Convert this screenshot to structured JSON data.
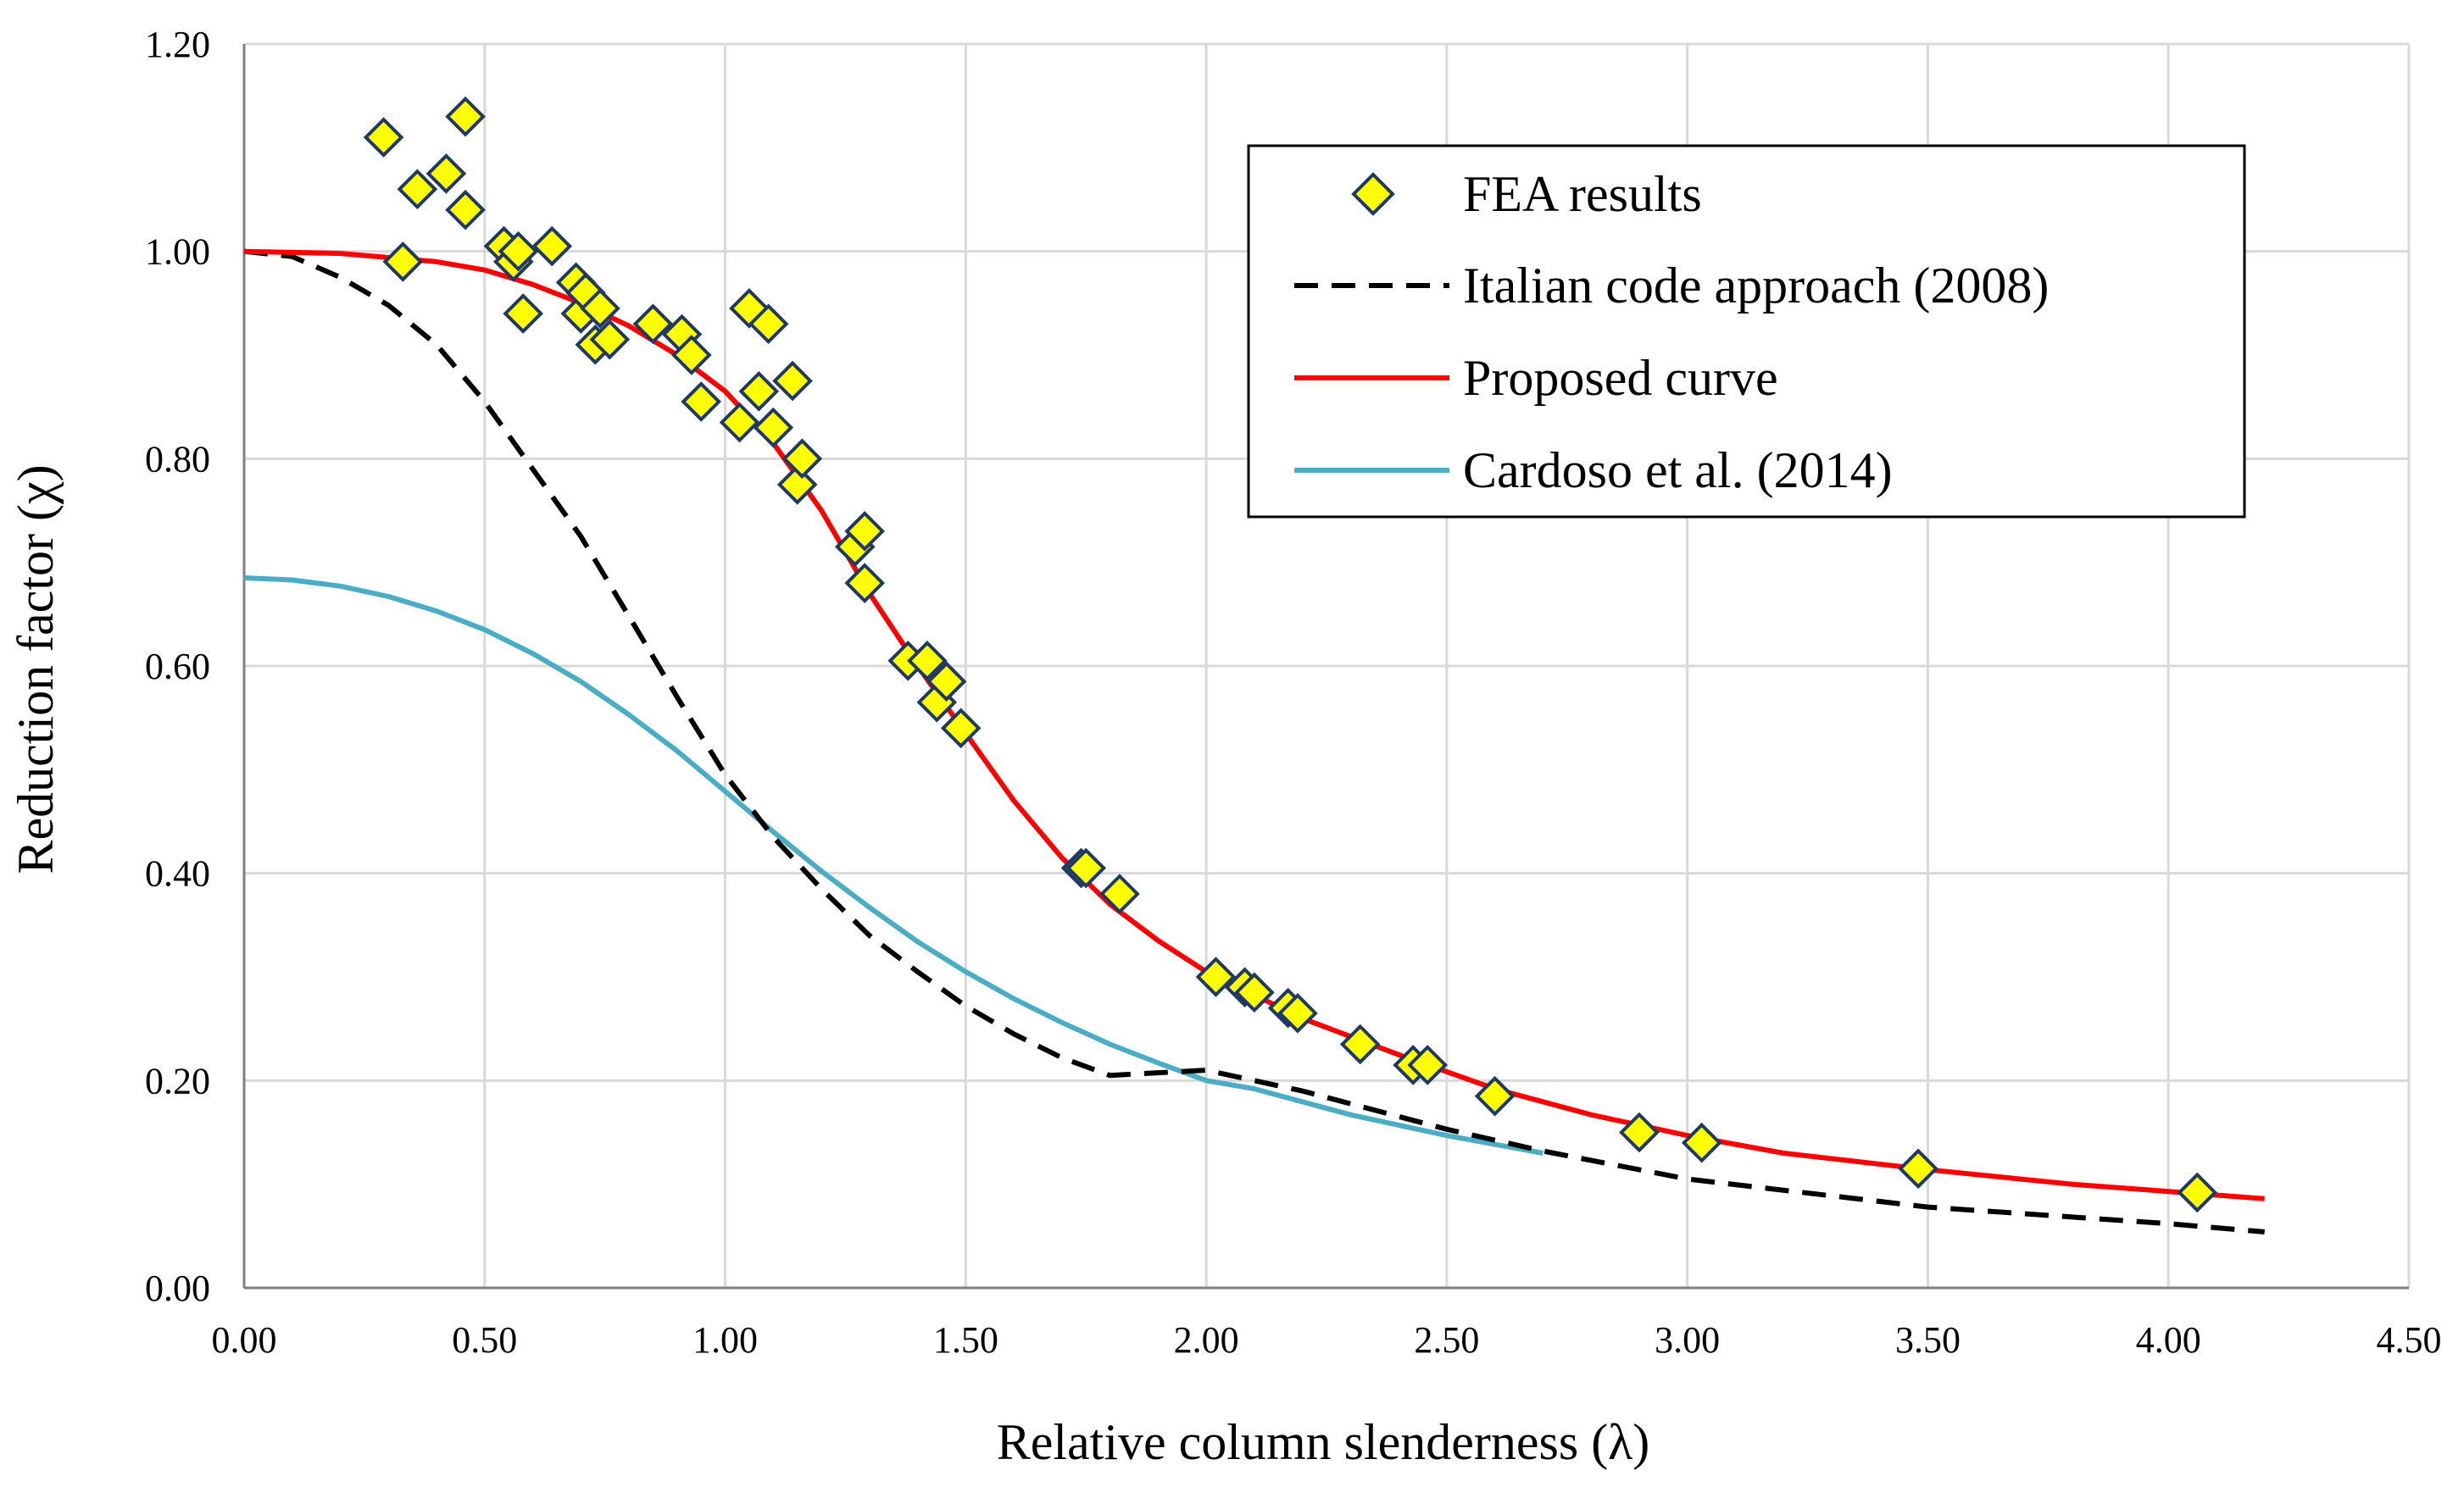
{
  "chart_data": {
    "type": "scatter",
    "xlabel": "Relative column slenderness (λ)",
    "ylabel": "Reduction factor (χ)",
    "xlim": [
      0,
      4.5
    ],
    "ylim": [
      0,
      1.2
    ],
    "x_ticks": [
      "0.00",
      "0.50",
      "1.00",
      "1.50",
      "2.00",
      "2.50",
      "3.00",
      "3.50",
      "4.00",
      "4.50"
    ],
    "y_ticks": [
      "0.00",
      "0.20",
      "0.40",
      "0.60",
      "0.80",
      "1.00",
      "1.20"
    ],
    "grid": true,
    "legend_placement": "top-right",
    "series": [
      {
        "name": "FEA results",
        "kind": "scatter",
        "marker": "diamond",
        "color": "#FFFF00",
        "edge_color": "#1F3864",
        "points": [
          [
            0.29,
            1.11
          ],
          [
            0.33,
            0.99
          ],
          [
            0.36,
            1.06
          ],
          [
            0.42,
            1.075
          ],
          [
            0.46,
            1.13
          ],
          [
            0.46,
            1.04
          ],
          [
            0.54,
            1.005
          ],
          [
            0.56,
            0.99
          ],
          [
            0.57,
            1.0
          ],
          [
            0.58,
            0.94
          ],
          [
            0.64,
            1.005
          ],
          [
            0.69,
            0.97
          ],
          [
            0.7,
            0.94
          ],
          [
            0.71,
            0.96
          ],
          [
            0.73,
            0.91
          ],
          [
            0.74,
            0.945
          ],
          [
            0.76,
            0.915
          ],
          [
            0.85,
            0.93
          ],
          [
            0.91,
            0.92
          ],
          [
            0.93,
            0.9
          ],
          [
            0.95,
            0.855
          ],
          [
            1.03,
            0.835
          ],
          [
            1.05,
            0.945
          ],
          [
            1.07,
            0.865
          ],
          [
            1.09,
            0.93
          ],
          [
            1.1,
            0.83
          ],
          [
            1.14,
            0.875
          ],
          [
            1.15,
            0.775
          ],
          [
            1.16,
            0.8
          ],
          [
            1.27,
            0.715
          ],
          [
            1.29,
            0.73
          ],
          [
            1.29,
            0.68
          ],
          [
            1.38,
            0.605
          ],
          [
            1.42,
            0.605
          ],
          [
            1.44,
            0.565
          ],
          [
            1.46,
            0.585
          ],
          [
            1.49,
            0.54
          ],
          [
            1.74,
            0.405
          ],
          [
            1.75,
            0.405
          ],
          [
            1.82,
            0.38
          ],
          [
            2.02,
            0.3
          ],
          [
            2.08,
            0.29
          ],
          [
            2.1,
            0.285
          ],
          [
            2.17,
            0.27
          ],
          [
            2.19,
            0.265
          ],
          [
            2.32,
            0.235
          ],
          [
            2.43,
            0.215
          ],
          [
            2.46,
            0.215
          ],
          [
            2.6,
            0.185
          ],
          [
            2.9,
            0.15
          ],
          [
            3.03,
            0.14
          ],
          [
            3.48,
            0.115
          ],
          [
            4.06,
            0.092
          ]
        ]
      },
      {
        "name": "Italian code approach (2008)",
        "kind": "line",
        "style": "dashed",
        "color": "#000000",
        "points": [
          [
            0.0,
            1.0
          ],
          [
            0.1,
            0.995
          ],
          [
            0.2,
            0.975
          ],
          [
            0.3,
            0.948
          ],
          [
            0.4,
            0.91
          ],
          [
            0.5,
            0.855
          ],
          [
            0.6,
            0.79
          ],
          [
            0.7,
            0.725
          ],
          [
            0.8,
            0.648
          ],
          [
            0.9,
            0.57
          ],
          [
            1.0,
            0.495
          ],
          [
            1.1,
            0.435
          ],
          [
            1.2,
            0.385
          ],
          [
            1.3,
            0.34
          ],
          [
            1.4,
            0.305
          ],
          [
            1.5,
            0.272
          ],
          [
            1.6,
            0.245
          ],
          [
            1.7,
            0.222
          ],
          [
            1.8,
            0.205
          ],
          [
            2.0,
            0.21
          ],
          [
            2.2,
            0.19
          ],
          [
            2.5,
            0.153
          ],
          [
            2.7,
            0.132
          ],
          [
            3.0,
            0.105
          ],
          [
            3.5,
            0.078
          ],
          [
            4.0,
            0.062
          ],
          [
            4.2,
            0.054
          ]
        ]
      },
      {
        "name": "Proposed curve",
        "kind": "line",
        "style": "solid",
        "color": "#FF0000",
        "points": [
          [
            0.0,
            1.0
          ],
          [
            0.2,
            0.998
          ],
          [
            0.4,
            0.99
          ],
          [
            0.5,
            0.982
          ],
          [
            0.6,
            0.968
          ],
          [
            0.7,
            0.95
          ],
          [
            0.8,
            0.928
          ],
          [
            0.9,
            0.9
          ],
          [
            1.0,
            0.865
          ],
          [
            1.1,
            0.815
          ],
          [
            1.2,
            0.75
          ],
          [
            1.3,
            0.67
          ],
          [
            1.4,
            0.6
          ],
          [
            1.5,
            0.535
          ],
          [
            1.6,
            0.47
          ],
          [
            1.7,
            0.415
          ],
          [
            1.8,
            0.37
          ],
          [
            1.9,
            0.335
          ],
          [
            2.0,
            0.305
          ],
          [
            2.2,
            0.26
          ],
          [
            2.4,
            0.225
          ],
          [
            2.6,
            0.192
          ],
          [
            2.8,
            0.167
          ],
          [
            3.0,
            0.147
          ],
          [
            3.2,
            0.13
          ],
          [
            3.5,
            0.114
          ],
          [
            3.8,
            0.1
          ],
          [
            4.0,
            0.093
          ],
          [
            4.2,
            0.086
          ]
        ]
      },
      {
        "name": "Cardoso et al. (2014)",
        "kind": "line",
        "style": "solid",
        "color": "#4BACC6",
        "points": [
          [
            0.0,
            0.685
          ],
          [
            0.1,
            0.683
          ],
          [
            0.2,
            0.677
          ],
          [
            0.3,
            0.667
          ],
          [
            0.4,
            0.653
          ],
          [
            0.5,
            0.635
          ],
          [
            0.6,
            0.612
          ],
          [
            0.7,
            0.585
          ],
          [
            0.8,
            0.553
          ],
          [
            0.9,
            0.518
          ],
          [
            1.0,
            0.479
          ],
          [
            1.1,
            0.44
          ],
          [
            1.2,
            0.402
          ],
          [
            1.3,
            0.367
          ],
          [
            1.4,
            0.334
          ],
          [
            1.5,
            0.305
          ],
          [
            1.6,
            0.279
          ],
          [
            1.7,
            0.256
          ],
          [
            1.8,
            0.235
          ],
          [
            1.9,
            0.217
          ],
          [
            2.0,
            0.2
          ],
          [
            2.1,
            0.192
          ],
          [
            2.3,
            0.167
          ],
          [
            2.5,
            0.147
          ],
          [
            2.7,
            0.13
          ]
        ]
      }
    ]
  }
}
